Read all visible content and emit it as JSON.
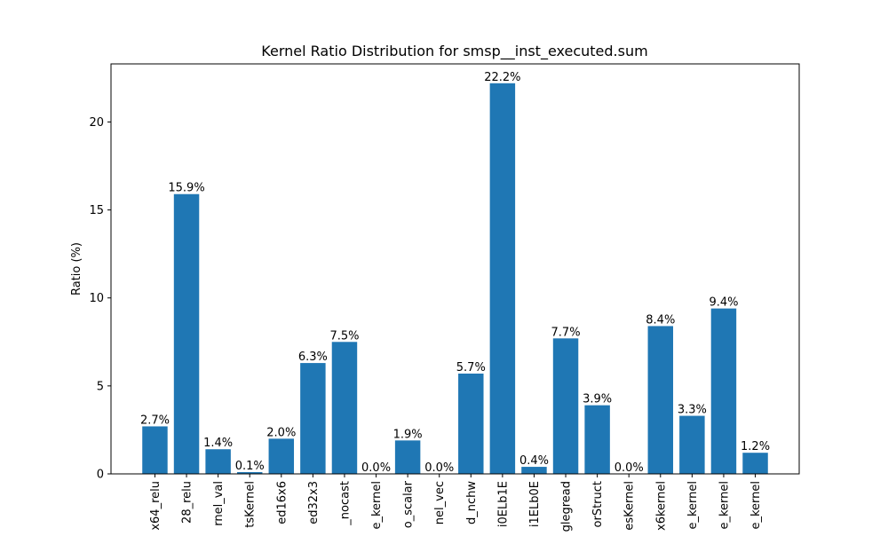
{
  "chart_data": {
    "type": "bar",
    "title": "Kernel Ratio Distribution for smsp__inst_executed.sum",
    "xlabel": "",
    "ylabel": "Ratio (%)",
    "ylim": [
      0,
      23.3
    ],
    "yticks": [
      0,
      5,
      10,
      15,
      20
    ],
    "bar_color": "#1f77b4",
    "grid": false,
    "legend": "none",
    "categories": [
      "x64_relu",
      "28_relu",
      "rnel_val",
      "tsKernel",
      "ed16x6",
      "ed32x3",
      "_nocast",
      "e_kernel",
      "o_scalar",
      "nel_vec",
      "d_nchw",
      "i0ELb1E",
      "i1ELb0E",
      "glegread",
      "orStruct",
      "esKernel",
      "x6kernel",
      "e_kernel",
      "e_kernel",
      "e_kernel"
    ],
    "values": [
      2.7,
      15.9,
      1.4,
      0.1,
      2.0,
      6.3,
      7.5,
      0.0,
      1.9,
      0.0,
      5.7,
      22.2,
      0.4,
      7.7,
      3.9,
      0.0,
      8.4,
      3.3,
      9.4,
      1.2
    ],
    "data_labels": [
      "2.7%",
      "15.9%",
      "1.4%",
      "0.1%",
      "2.0%",
      "6.3%",
      "7.5%",
      "0.0%",
      "1.9%",
      "0.0%",
      "5.7%",
      "22.2%",
      "0.4%",
      "7.7%",
      "3.9%",
      "0.0%",
      "8.4%",
      "3.3%",
      "9.4%",
      "1.2%"
    ]
  }
}
